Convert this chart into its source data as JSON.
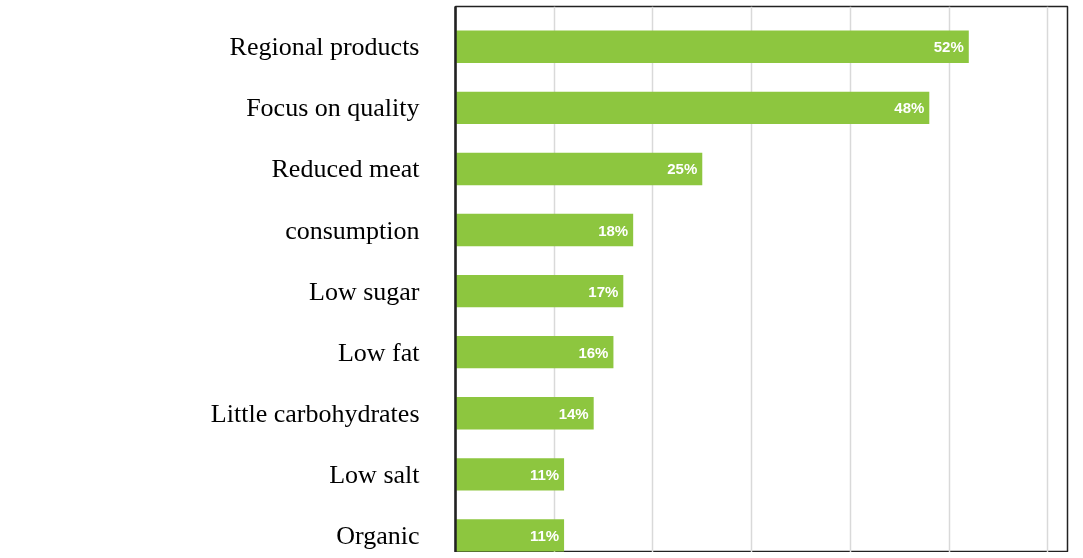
{
  "chart_data": {
    "type": "bar",
    "orientation": "horizontal",
    "categories": [
      "Regional products",
      "Focus on quality",
      "Reduced meat",
      "consumption",
      "Low sugar",
      "Low fat",
      "Little carbohydrates",
      "Low salt",
      "Organic"
    ],
    "values": [
      52,
      48,
      25,
      18,
      17,
      16,
      14,
      11,
      11
    ],
    "value_labels": [
      "52%",
      "48%",
      "25%",
      "18%",
      "17%",
      "16%",
      "14%",
      "11%",
      "11%"
    ],
    "color": "#8dc63f",
    "xlim": [
      0,
      62
    ],
    "xticks": [
      {
        "value": 0,
        "label": null
      },
      {
        "value": 10,
        "label": null
      },
      {
        "value": 20,
        "label": null
      },
      {
        "value": 30,
        "label": null
      },
      {
        "value": 40,
        "label": null
      },
      {
        "value": 50,
        "label": null
      },
      {
        "value": 60,
        "label": null
      }
    ],
    "grid": "x",
    "tick_labels": "y"
  }
}
